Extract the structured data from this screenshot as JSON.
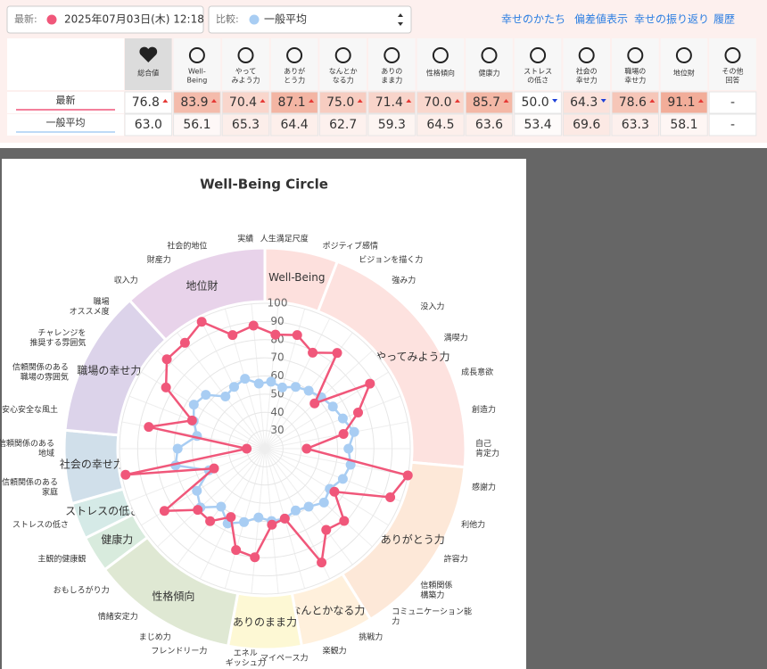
{
  "header": {
    "latest_label": "最新:",
    "latest_date": "2025年07月03日(木) 12:18",
    "compare_label": "比較:",
    "compare_value": "一般平均",
    "links": [
      "幸せのかたち",
      "偏差値表示",
      "幸せの振り返り",
      "履歴"
    ]
  },
  "table": {
    "columns": [
      [
        "総合値"
      ],
      [
        "Well-",
        "Being"
      ],
      [
        "やって",
        "みよう力"
      ],
      [
        "ありが",
        "とう力"
      ],
      [
        "なんとか",
        "なる力"
      ],
      [
        "ありの",
        "まま力"
      ],
      [
        "性格傾向"
      ],
      [
        "健康力"
      ],
      [
        "ストレス",
        "の低さ"
      ],
      [
        "社会の",
        "幸せ力"
      ],
      [
        "職場の",
        "幸せ力"
      ],
      [
        "地位財"
      ],
      [
        "その他",
        "回答"
      ]
    ],
    "rows": [
      {
        "values": [
          76.8,
          83.9,
          70.4,
          87.1,
          75.0,
          71.4,
          70.0,
          85.7,
          50.0,
          64.3,
          78.6,
          91.1,
          null
        ],
        "value_labels": [
          "76.8",
          "83.9",
          "70.4",
          "87.1",
          "75.0",
          "71.4",
          "70.0",
          "85.7",
          "50.0",
          "64.3",
          "78.6",
          "91.1",
          "-"
        ]
      },
      {
        "values": [
          63.0,
          56.1,
          65.3,
          64.4,
          62.7,
          59.3,
          64.5,
          63.6,
          53.4,
          69.6,
          63.3,
          58.1,
          null
        ],
        "value_labels": [
          "63.0",
          "56.1",
          "65.3",
          "64.4",
          "62.7",
          "59.3",
          "64.5",
          "63.6",
          "53.4",
          "69.6",
          "63.3",
          "58.1",
          "-"
        ]
      }
    ]
  },
  "chart_data": {
    "type": "radar",
    "title": "Well-Being Circle",
    "rlim": [
      20,
      100
    ],
    "rticks": [
      30,
      40,
      50,
      60,
      70,
      80,
      90,
      100
    ],
    "groups": [
      {
        "name": "Well-Being",
        "color": "#fde0dd",
        "items": [
          [
            "人生満足尺度"
          ],
          [
            "ポジティブ感情"
          ]
        ]
      },
      {
        "name": "やってみよう力",
        "color": "#fde2df",
        "items": [
          [
            "ビジョンを描く力"
          ],
          [
            "強み力"
          ],
          [
            "没入力"
          ],
          [
            "満喫力"
          ],
          [
            "成長意欲"
          ],
          [
            "創造力"
          ],
          [
            "自己",
            "肯定力"
          ]
        ]
      },
      {
        "name": "ありがとう力",
        "color": "#fde8d8",
        "items": [
          [
            "感謝力"
          ],
          [
            "利他力"
          ],
          [
            "許容力"
          ],
          [
            "信頼関係",
            "構築力"
          ],
          [
            "コミュニケーション能",
            "力"
          ]
        ]
      },
      {
        "name": "なんとかなる力",
        "color": "#fff0dc",
        "items": [
          [
            "挑戦力"
          ],
          [
            "楽観力"
          ]
        ]
      },
      {
        "name": "ありのまま力",
        "color": "#fdf8d4",
        "items": [
          [
            "マイペース力"
          ],
          [
            "エネル",
            "ギッシュ力"
          ]
        ]
      },
      {
        "name": "性格傾向",
        "color": "#dfe8d3",
        "items": [
          [
            "フレンドリー力"
          ],
          [
            "まじめ力"
          ],
          [
            "情緒安定力"
          ],
          [
            "おもしろがり力"
          ]
        ]
      },
      {
        "name": "健康力",
        "color": "#d8ebdd",
        "items": [
          [
            "主観的健康観"
          ]
        ]
      },
      {
        "name": "ストレスの低さ",
        "color": "#d5eae7",
        "items": [
          [
            "ストレスの低さ"
          ]
        ]
      },
      {
        "name": "社会の幸せ力",
        "color": "#d0dfea",
        "items": [
          [
            "信頼関係のある",
            "家庭"
          ],
          [
            "信頼関係のある",
            "地域"
          ]
        ]
      },
      {
        "name": "職場の幸せ力",
        "color": "#dcd3ea",
        "items": [
          [
            "安心安全な風土"
          ],
          [
            "信頼関係のある",
            "職場の雰囲気"
          ],
          [
            "チャレンジを",
            "推奨する雰囲気"
          ],
          [
            "職場",
            "オススメ度"
          ]
        ]
      },
      {
        "name": "地位財",
        "color": "#e8d3ea",
        "items": [
          [
            "収入力"
          ],
          [
            "財産力"
          ],
          [
            "社会的地位"
          ],
          [
            "実績"
          ]
        ]
      }
    ],
    "series": [
      {
        "name": "最新",
        "color": "#f0577a",
        "values": [
          83,
          85,
          79,
          86,
          57,
          88,
          75,
          64,
          43,
          100,
          94,
          65,
          79,
          76,
          90,
          60,
          62,
          80,
          78,
          62,
          70,
          70,
          85,
          50,
          98,
          30,
          85,
          63,
          84,
          93,
          93,
          98,
          85,
          88
        ]
      },
      {
        "name": "一般平均",
        "color": "#a8cdf3",
        "values": [
          57,
          55,
          58,
          60,
          62,
          64,
          66,
          70,
          66,
          68,
          66,
          62,
          64,
          60,
          58,
          60,
          60,
          58,
          62,
          66,
          60,
          68,
          64,
          53,
          70,
          68,
          58,
          62,
          66,
          64,
          56,
          58,
          60,
          56
        ]
      }
    ]
  }
}
